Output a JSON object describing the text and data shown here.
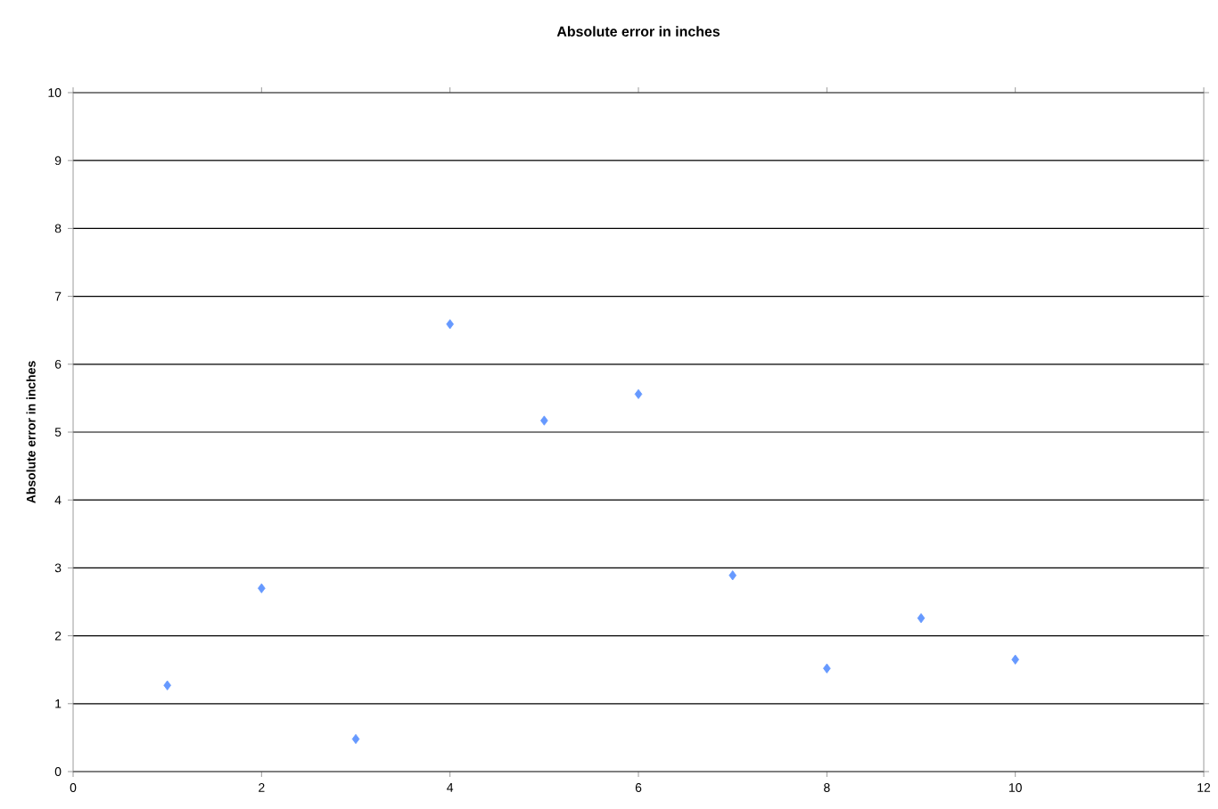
{
  "chart_data": {
    "type": "scatter",
    "title": "Absolute error in inches",
    "ylabel": "Absolute error in inches",
    "x": [
      1,
      2,
      3,
      4,
      5,
      6,
      7,
      8,
      9,
      10
    ],
    "series": [
      {
        "color": "#6699ff",
        "values": [
          1.27,
          2.7,
          0.48,
          6.59,
          5.17,
          5.56,
          2.89,
          1.52,
          2.26,
          1.65
        ]
      }
    ],
    "xlim": [
      0,
      12
    ],
    "xticks": [
      0,
      2,
      4,
      6,
      8,
      10,
      12
    ],
    "ylim": [
      0,
      10
    ],
    "yticks": [
      0,
      1,
      2,
      3,
      4,
      5,
      6,
      7,
      8,
      9,
      10
    ],
    "grid": "y",
    "marker": "diamond"
  }
}
